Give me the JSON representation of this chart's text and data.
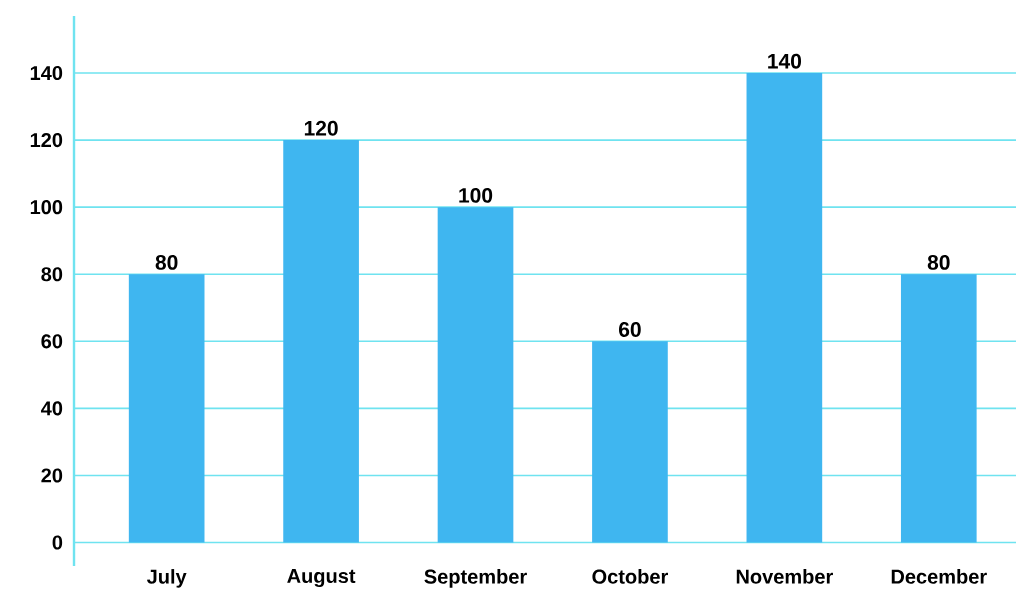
{
  "chart_data": {
    "type": "bar",
    "categories": [
      "July",
      "August",
      "September",
      "October",
      "November",
      "December"
    ],
    "values": [
      80,
      120,
      100,
      60,
      140,
      80
    ],
    "color": "#3fb6f0",
    "ylim": [
      -7,
      157
    ],
    "yticks": [
      0,
      20,
      40,
      60,
      80,
      100,
      120,
      140
    ],
    "grid": "y",
    "data_labels": true
  }
}
